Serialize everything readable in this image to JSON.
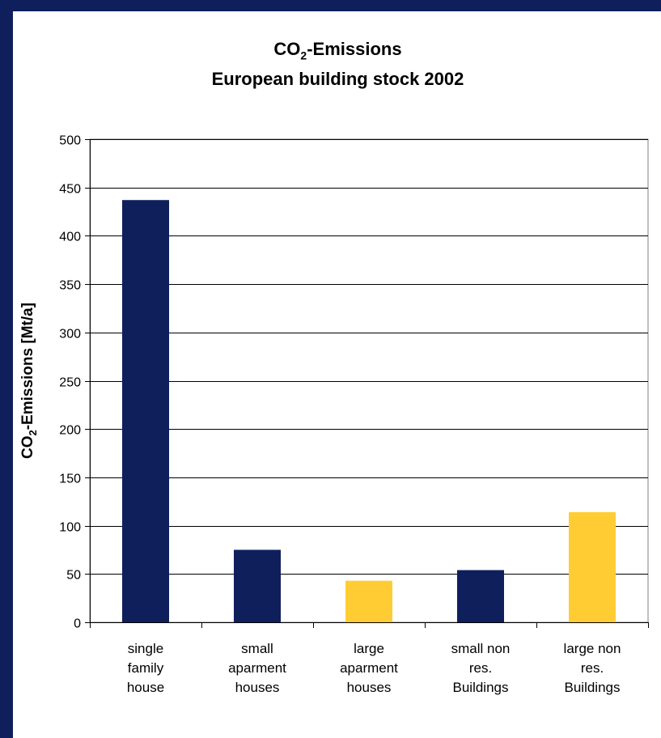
{
  "chart_data": {
    "type": "bar",
    "title_line1": {
      "main": "CO",
      "sub": "2",
      "rest": "-Emissions"
    },
    "title_line2": "European building stock 2002",
    "ylabel": {
      "main": "CO",
      "sub": "2",
      "rest": "-Emissions [Mt/a]"
    },
    "xlabel": "",
    "ylim": [
      0,
      500
    ],
    "yticks": [
      "0",
      "50",
      "100",
      "150",
      "200",
      "250",
      "300",
      "350",
      "400",
      "450",
      "500"
    ],
    "grid": true,
    "categories": [
      [
        "single",
        "family",
        "house"
      ],
      [
        "small",
        "aparment",
        "houses"
      ],
      [
        "large",
        "aparment",
        "houses"
      ],
      [
        "small non",
        "res.",
        "Buildings"
      ],
      [
        "large non",
        "res.",
        "Buildings"
      ]
    ],
    "values": [
      437,
      75,
      43,
      54,
      114
    ],
    "bar_colors": [
      "#0e1f5c",
      "#0e1f5c",
      "#ffcc33",
      "#0e1f5c",
      "#ffcc33"
    ]
  },
  "colors": {
    "frame_border": "#0e1f5c",
    "navy": "#0e1f5c",
    "gold": "#ffcc33"
  }
}
